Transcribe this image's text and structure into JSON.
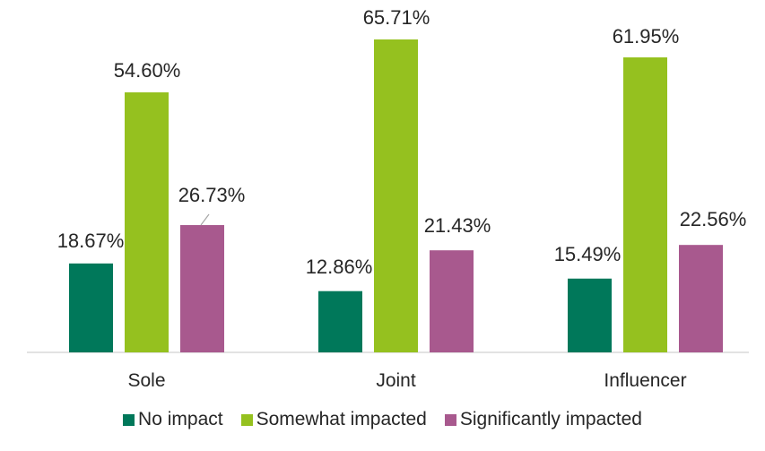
{
  "chart_data": {
    "type": "bar",
    "categories": [
      "Sole",
      "Joint",
      "Influencer"
    ],
    "series": [
      {
        "name": "No impact",
        "values": [
          18.67,
          12.86,
          15.49
        ],
        "labels": [
          "18.67%",
          "12.86%",
          "15.49%"
        ],
        "color": "#00785A"
      },
      {
        "name": "Somewhat impacted",
        "values": [
          54.6,
          65.71,
          61.95
        ],
        "labels": [
          "54.60%",
          "65.71%",
          "61.95%"
        ],
        "color": "#95C11F"
      },
      {
        "name": "Significantly impacted",
        "values": [
          26.73,
          21.43,
          22.56
        ],
        "labels": [
          "26.73%",
          "21.43%",
          "22.56%"
        ],
        "color": "#A8598E"
      }
    ],
    "ylim": [
      0,
      70
    ],
    "grid": false,
    "legend_position": "bottom",
    "xlabel": "",
    "ylabel": ""
  }
}
